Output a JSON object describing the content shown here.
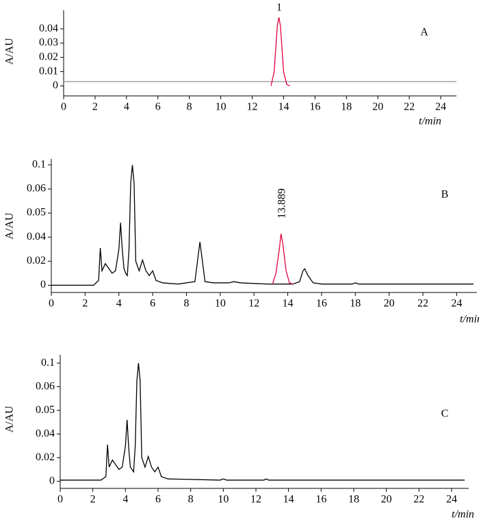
{
  "chart_data": [
    {
      "type": "line",
      "panel": "A",
      "xlabel": "t/min",
      "ylabel": "A/AU",
      "annotation": "1",
      "xlim": [
        0,
        25
      ],
      "xticks": [
        0,
        2,
        4,
        6,
        8,
        10,
        12,
        14,
        16,
        18,
        20,
        22,
        24
      ],
      "ylim": [
        -0.007,
        0.053
      ],
      "yticks": [
        0,
        0.01,
        0.02,
        0.03,
        0.04
      ],
      "series": [
        {
          "color": "#999999",
          "x": [
            0,
            25
          ],
          "values": [
            0.003,
            0.003
          ]
        },
        {
          "color": "#e0003c",
          "x": [
            13.2,
            13.4,
            13.6,
            13.7,
            13.8,
            14.0,
            14.2,
            14.4
          ],
          "values": [
            0,
            0.01,
            0.042,
            0.048,
            0.042,
            0.01,
            0.001,
            0
          ]
        }
      ]
    },
    {
      "type": "line",
      "panel": "B",
      "xlabel": "t/min",
      "ylabel": "A/AU",
      "annotation": "13.889",
      "xlim": [
        0,
        25.2
      ],
      "xticks": [
        0,
        2,
        4,
        6,
        8,
        10,
        12,
        14,
        16,
        18,
        20,
        22,
        24
      ],
      "ylim": [
        -0.006,
        0.11
      ],
      "yticks": [
        0,
        0.02,
        0.04,
        0.05,
        0.06,
        0.1
      ],
      "series": [
        {
          "color": "#000000",
          "x": [
            0,
            2.5,
            2.8,
            2.9,
            3.0,
            3.2,
            3.4,
            3.6,
            3.8,
            4.0,
            4.1,
            4.2,
            4.3,
            4.4,
            4.5,
            4.6,
            4.7,
            4.8,
            4.9,
            5.0,
            5.2,
            5.4,
            5.6,
            5.8,
            6.0,
            6.2,
            6.6,
            7.5,
            8.5,
            8.7,
            8.8,
            8.9,
            9.1,
            9.6,
            10.5,
            10.8,
            11.2,
            12.8,
            13.1,
            14.3,
            14.7,
            14.9,
            15.0,
            15.2,
            15.5,
            16.0,
            17.8,
            18.0,
            18.2,
            25
          ],
          "values": [
            0,
            0,
            0.004,
            0.031,
            0.012,
            0.018,
            0.014,
            0.01,
            0.012,
            0.03,
            0.046,
            0.03,
            0.014,
            0.01,
            0.008,
            0.03,
            0.07,
            0.1,
            0.07,
            0.02,
            0.012,
            0.021,
            0.012,
            0.008,
            0.012,
            0.004,
            0.002,
            0.001,
            0.003,
            0.025,
            0.036,
            0.025,
            0.003,
            0.002,
            0.002,
            0.003,
            0.002,
            0.001,
            0.001,
            0.001,
            0.003,
            0.012,
            0.0137,
            0.008,
            0.002,
            0.001,
            0.001,
            0.002,
            0.001,
            0.001
          ]
        },
        {
          "color": "#e0003c",
          "x": [
            13.1,
            13.3,
            13.5,
            13.6,
            13.7,
            13.9,
            14.1,
            14.3
          ],
          "values": [
            0.001,
            0.01,
            0.03,
            0.0414,
            0.035,
            0.012,
            0.002,
            0.001
          ]
        }
      ]
    },
    {
      "type": "line",
      "panel": "C",
      "xlabel": "t/min",
      "ylabel": "A/AU",
      "xlim": [
        0,
        25.05
      ],
      "xticks": [
        0,
        2,
        4,
        6,
        8,
        10,
        12,
        14,
        16,
        18,
        20,
        22,
        24
      ],
      "ylim": [
        -0.006,
        0.114
      ],
      "yticks": [
        0,
        0.02,
        0.04,
        0.05,
        0.06,
        0.1
      ],
      "series": [
        {
          "color": "#000000",
          "x": [
            0,
            2.5,
            2.8,
            2.9,
            3.0,
            3.2,
            3.6,
            3.8,
            4.0,
            4.1,
            4.2,
            4.3,
            4.5,
            4.6,
            4.7,
            4.8,
            4.9,
            5.0,
            5.2,
            5.4,
            5.6,
            5.8,
            6.0,
            6.2,
            6.6,
            9.8,
            10.0,
            10.2,
            12.5,
            12.6,
            12.8,
            24.8
          ],
          "values": [
            0.001,
            0.001,
            0.004,
            0.031,
            0.012,
            0.018,
            0.01,
            0.012,
            0.03,
            0.046,
            0.028,
            0.012,
            0.008,
            0.03,
            0.07,
            0.1,
            0.07,
            0.02,
            0.012,
            0.021,
            0.012,
            0.008,
            0.012,
            0.004,
            0.002,
            0.001,
            0.002,
            0.001,
            0.001,
            0.002,
            0.001,
            0.001
          ]
        }
      ]
    }
  ]
}
